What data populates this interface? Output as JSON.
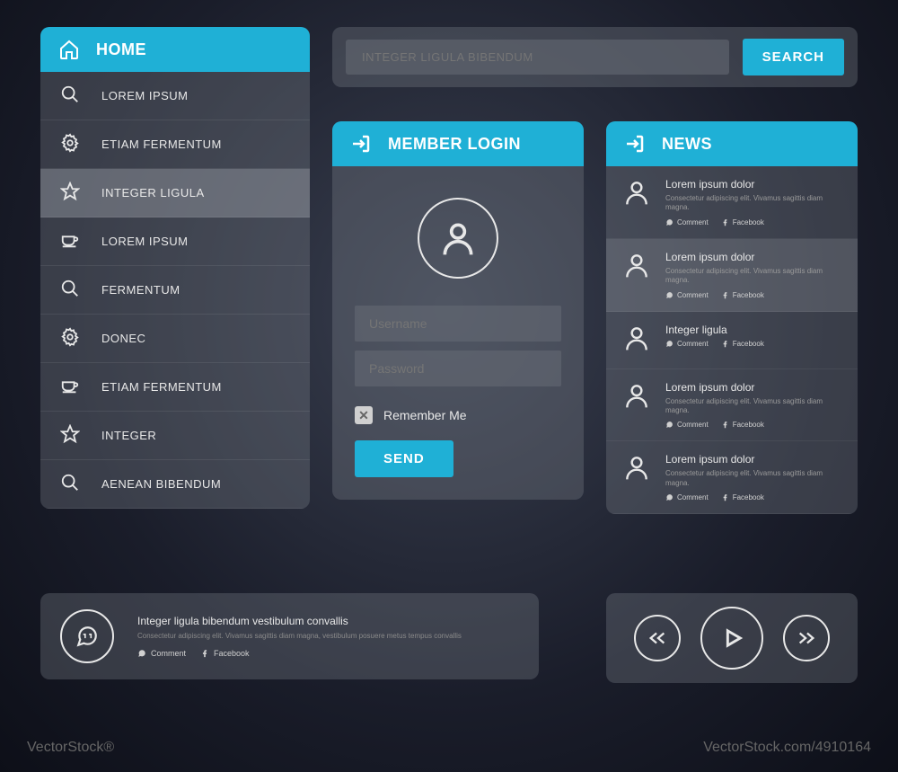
{
  "colors": {
    "accent": "#1fb0d6",
    "panel_bg": "rgba(120,125,135,0.35)",
    "text": "#e8e8e8",
    "muted": "#9a9a9a"
  },
  "nav": {
    "header": "HOME",
    "items": [
      {
        "icon": "search",
        "label": "LOREM IPSUM",
        "active": false
      },
      {
        "icon": "gear",
        "label": "ETIAM FERMENTUM",
        "active": false
      },
      {
        "icon": "star",
        "label": "INTEGER LIGULA",
        "active": true
      },
      {
        "icon": "coffee",
        "label": "LOREM IPSUM",
        "active": false
      },
      {
        "icon": "search",
        "label": "FERMENTUM",
        "active": false
      },
      {
        "icon": "gear",
        "label": "DONEC",
        "active": false
      },
      {
        "icon": "coffee",
        "label": "ETIAM FERMENTUM",
        "active": false
      },
      {
        "icon": "star",
        "label": "INTEGER",
        "active": false
      },
      {
        "icon": "search",
        "label": "AENEAN BIBENDUM",
        "active": false
      }
    ]
  },
  "search": {
    "placeholder": "INTEGER LIGULA BIBENDUM",
    "button": "SEARCH"
  },
  "login": {
    "header": "MEMBER LOGIN",
    "username_placeholder": "Username",
    "password_placeholder": "Password",
    "remember_label": "Remember Me",
    "send_button": "SEND"
  },
  "news": {
    "header": "NEWS",
    "comment_label": "Comment",
    "facebook_label": "Facebook",
    "items": [
      {
        "title": "Lorem ipsum dolor",
        "sub": "Consectetur adipiscing elit. Vivamus sagittis diam magna.",
        "alt": false
      },
      {
        "title": "Lorem ipsum dolor",
        "sub": "Consectetur adipiscing elit. Vivamus sagittis diam magna.",
        "alt": true
      },
      {
        "title": "Integer ligula",
        "sub": "",
        "alt": false
      },
      {
        "title": "Lorem ipsum dolor",
        "sub": "Consectetur adipiscing elit. Vivamus sagittis diam magna.",
        "alt": false
      },
      {
        "title": "Lorem ipsum dolor",
        "sub": "Consectetur adipiscing elit. Vivamus sagittis diam magna.",
        "alt": false
      }
    ]
  },
  "info": {
    "title": "Integer ligula bibendum vestibulum convallis",
    "sub": "Consectetur adipiscing elit. Vivamus sagittis diam magna, vestibulum posuere metus tempus convallis",
    "comment_label": "Comment",
    "facebook_label": "Facebook"
  },
  "watermark": {
    "left": "VectorStock®",
    "right": "VectorStock.com/4910164"
  }
}
